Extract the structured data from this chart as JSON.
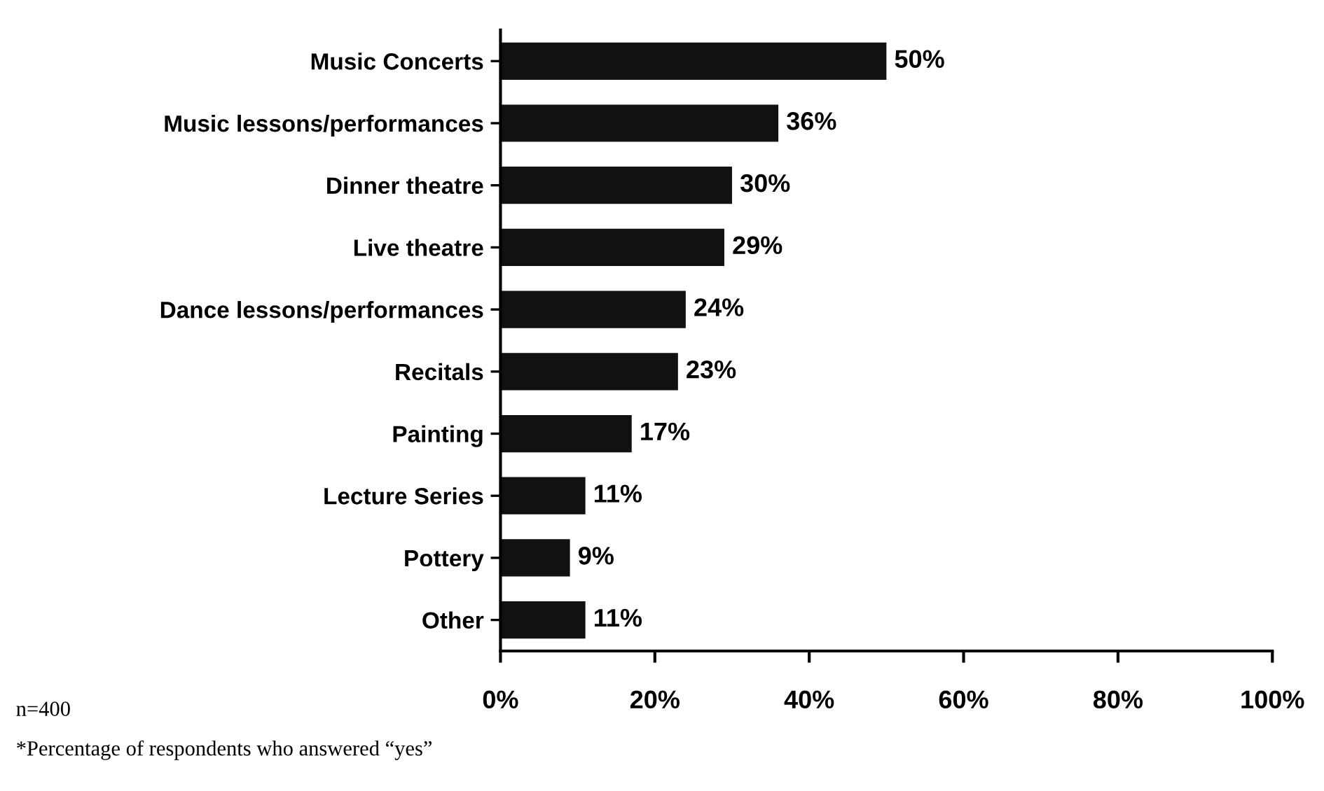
{
  "chart_data": {
    "type": "bar",
    "orientation": "horizontal",
    "categories": [
      "Music Concerts",
      "Music lessons/performances",
      "Dinner theatre",
      "Live theatre",
      "Dance lessons/performances",
      "Recitals",
      "Painting",
      "Lecture Series",
      "Pottery",
      "Other"
    ],
    "values": [
      50,
      36,
      30,
      29,
      24,
      23,
      17,
      11,
      9,
      11
    ],
    "value_labels": [
      "50%",
      "36%",
      "30%",
      "29%",
      "24%",
      "23%",
      "17%",
      "11%",
      "9%",
      "11%"
    ],
    "color": "#111111",
    "xlim": [
      0,
      100
    ],
    "xticks": [
      {
        "value": 0,
        "label": "0%"
      },
      {
        "value": 20,
        "label": "20%"
      },
      {
        "value": 40,
        "label": "40%"
      },
      {
        "value": 60,
        "label": "60%"
      },
      {
        "value": 80,
        "label": "80%"
      },
      {
        "value": 100,
        "label": "100%"
      }
    ],
    "grid": false,
    "legend": false,
    "annotations": [
      "n=400",
      "*Percentage of respondents who answered “yes”"
    ]
  }
}
